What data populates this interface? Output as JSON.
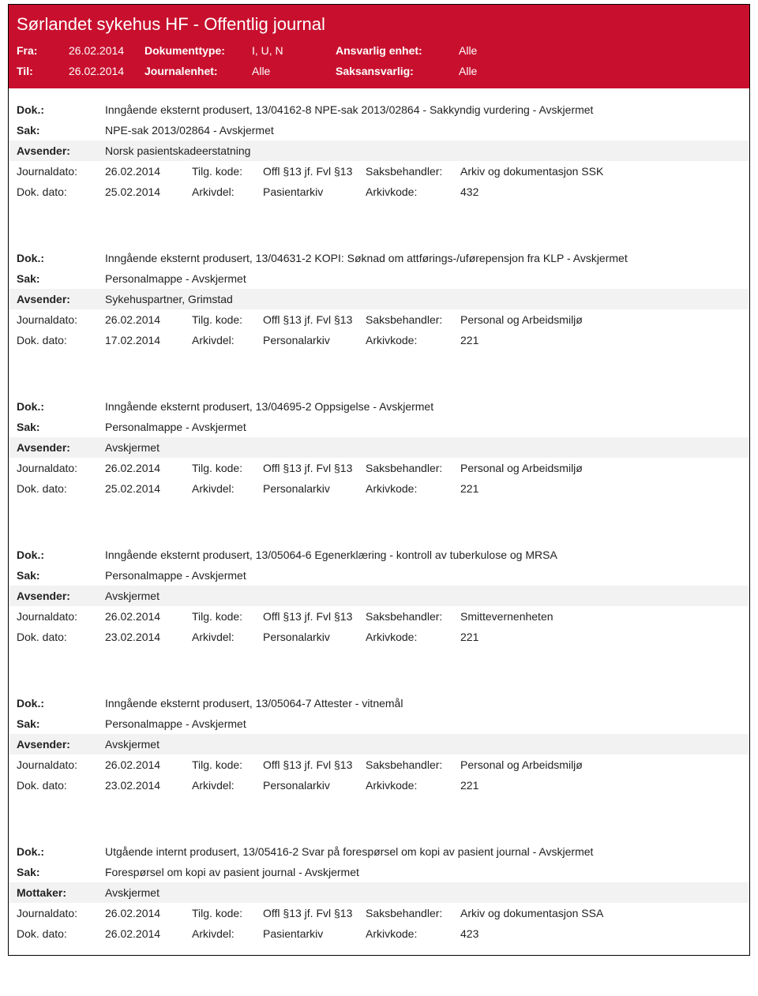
{
  "header": {
    "title": "Sørlandet sykehus HF - Offentlig journal",
    "fra_label": "Fra:",
    "fra_value": "26.02.2014",
    "til_label": "Til:",
    "til_value": "26.02.2014",
    "doktype_label": "Dokumenttype:",
    "doktype_value": "I, U, N",
    "journalenhet_label": "Journalenhet:",
    "journalenhet_value": "Alle",
    "ansvarlig_label": "Ansvarlig enhet:",
    "ansvarlig_value": "Alle",
    "saksansvarlig_label": "Saksansvarlig:",
    "saksansvarlig_value": "Alle"
  },
  "labels": {
    "dok": "Dok.:",
    "sak": "Sak:",
    "avsender": "Avsender:",
    "mottaker": "Mottaker:",
    "journaldato": "Journaldato:",
    "dokdato": "Dok. dato:",
    "tilgkode": "Tilg. kode:",
    "arkivdel": "Arkivdel:",
    "saksbehandler": "Saksbehandler:",
    "arkivkode": "Arkivkode:"
  },
  "entries": [
    {
      "dok": "Inngående eksternt produsert, 13/04162-8 NPE-sak 2013/02864 - Sakkyndig vurdering - Avskjermet",
      "sak": "NPE-sak 2013/02864 - Avskjermet",
      "party_label": "Avsender:",
      "party": "Norsk pasientskadeerstatning",
      "journaldato": "26.02.2014",
      "dokdato": "25.02.2014",
      "tilgkode": "Offl §13 jf. Fvl §13",
      "arkivdel": "Pasientarkiv",
      "saksbehandler": "Arkiv og dokumentasjon SSK",
      "arkivkode": "432"
    },
    {
      "dok": "Inngående eksternt produsert, 13/04631-2 KOPI: Søknad om attførings-/uførepensjon fra KLP - Avskjermet",
      "sak": "Personalmappe - Avskjermet",
      "party_label": "Avsender:",
      "party": "Sykehuspartner, Grimstad",
      "journaldato": "26.02.2014",
      "dokdato": "17.02.2014",
      "tilgkode": "Offl §13 jf. Fvl §13",
      "arkivdel": "Personalarkiv",
      "saksbehandler": "Personal og Arbeidsmiljø",
      "arkivkode": "221"
    },
    {
      "dok": "Inngående eksternt produsert, 13/04695-2 Oppsigelse - Avskjermet",
      "sak": "Personalmappe - Avskjermet",
      "party_label": "Avsender:",
      "party": "Avskjermet",
      "journaldato": "26.02.2014",
      "dokdato": "25.02.2014",
      "tilgkode": "Offl §13 jf. Fvl §13",
      "arkivdel": "Personalarkiv",
      "saksbehandler": "Personal og Arbeidsmiljø",
      "arkivkode": "221"
    },
    {
      "dok": "Inngående eksternt produsert, 13/05064-6 Egenerklæring - kontroll av tuberkulose og MRSA",
      "sak": "Personalmappe - Avskjermet",
      "party_label": "Avsender:",
      "party": "Avskjermet",
      "journaldato": "26.02.2014",
      "dokdato": "23.02.2014",
      "tilgkode": "Offl §13 jf. Fvl §13",
      "arkivdel": "Personalarkiv",
      "saksbehandler": "Smittevernenheten",
      "arkivkode": "221"
    },
    {
      "dok": "Inngående eksternt produsert, 13/05064-7 Attester - vitnemål",
      "sak": "Personalmappe - Avskjermet",
      "party_label": "Avsender:",
      "party": "Avskjermet",
      "journaldato": "26.02.2014",
      "dokdato": "23.02.2014",
      "tilgkode": "Offl §13 jf. Fvl §13",
      "arkivdel": "Personalarkiv",
      "saksbehandler": "Personal og Arbeidsmiljø",
      "arkivkode": "221"
    },
    {
      "dok": "Utgående internt produsert, 13/05416-2 Svar på forespørsel om kopi av pasient journal - Avskjermet",
      "sak": "Forespørsel om kopi av pasient journal - Avskjermet",
      "party_label": "Mottaker:",
      "party": "Avskjermet",
      "journaldato": "26.02.2014",
      "dokdato": "26.02.2014",
      "tilgkode": "Offl §13 jf. Fvl §13",
      "arkivdel": "Pasientarkiv",
      "saksbehandler": "Arkiv og dokumentasjon SSA",
      "arkivkode": "423"
    }
  ],
  "colors": {
    "brand_red": "#c8102e",
    "shade": "#f2f2f2",
    "border": "#000000",
    "text": "#222222"
  }
}
